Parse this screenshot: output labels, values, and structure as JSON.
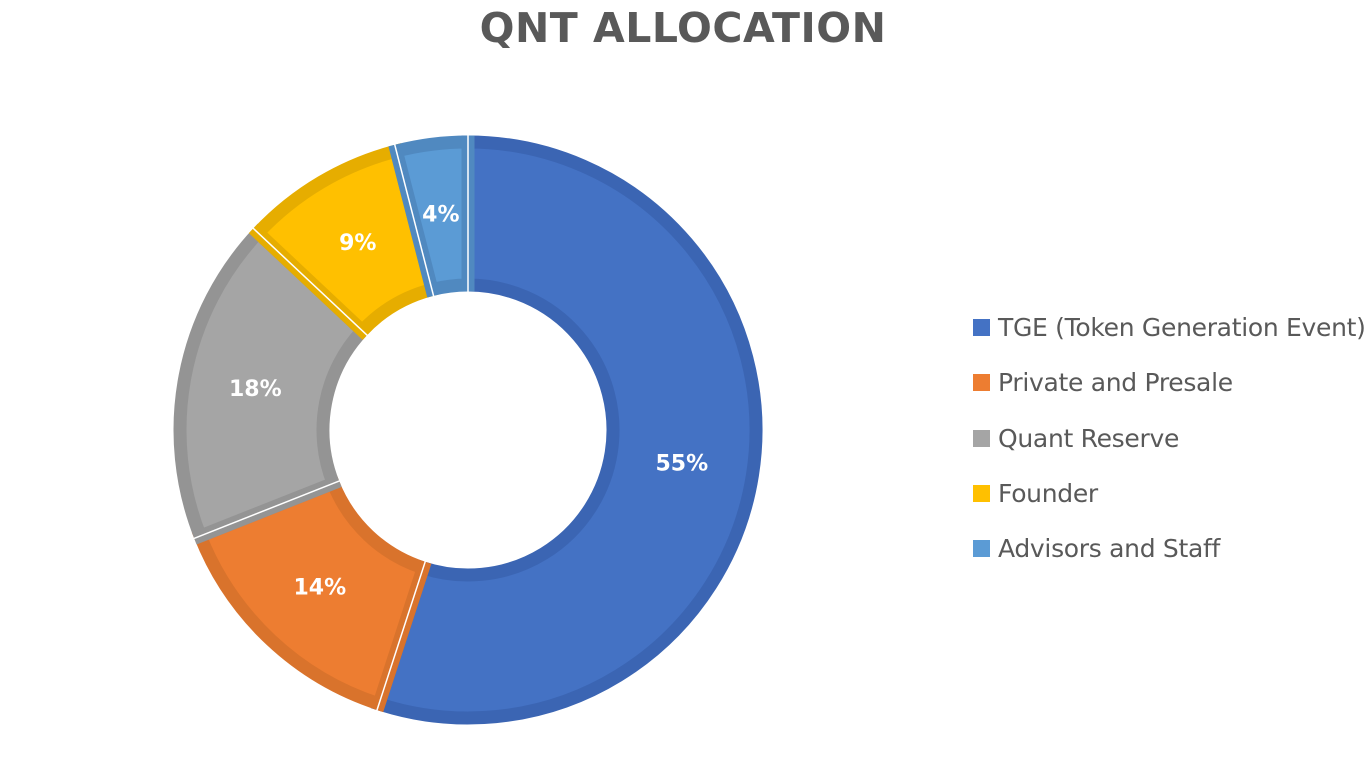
{
  "chart_data": {
    "type": "pie",
    "subtype": "donut",
    "title": "QNT ALLOCATION",
    "categories": [
      "TGE (Token Generation Event)",
      "Private and Presale",
      "Quant Reserve",
      "Founder",
      "Advisors and Staff"
    ],
    "values": [
      55,
      14,
      18,
      9,
      4
    ],
    "labels": [
      "55%",
      "14%",
      "18%",
      "9%",
      "4%"
    ],
    "colors": [
      "#4472C4",
      "#ED7D31",
      "#A5A5A5",
      "#FFC000",
      "#5B9BD5"
    ],
    "border_colors": [
      "#3B65B3",
      "#D9732C",
      "#949494",
      "#E6AD00",
      "#5089C0"
    ],
    "start_angle": "12 o'clock",
    "direction": "clockwise",
    "legend_position": "right",
    "xlabel": "",
    "ylabel": ""
  },
  "title": "QNT ALLOCATION",
  "legend": {
    "items": [
      {
        "label": "TGE (Token Generation Event)",
        "color": "#4472C4"
      },
      {
        "label": "Private and Presale",
        "color": "#ED7D31"
      },
      {
        "label": "Quant Reserve",
        "color": "#A5A5A5"
      },
      {
        "label": "Founder",
        "color": "#FFC000"
      },
      {
        "label": "Advisors and Staff",
        "color": "#5B9BD5"
      }
    ]
  }
}
